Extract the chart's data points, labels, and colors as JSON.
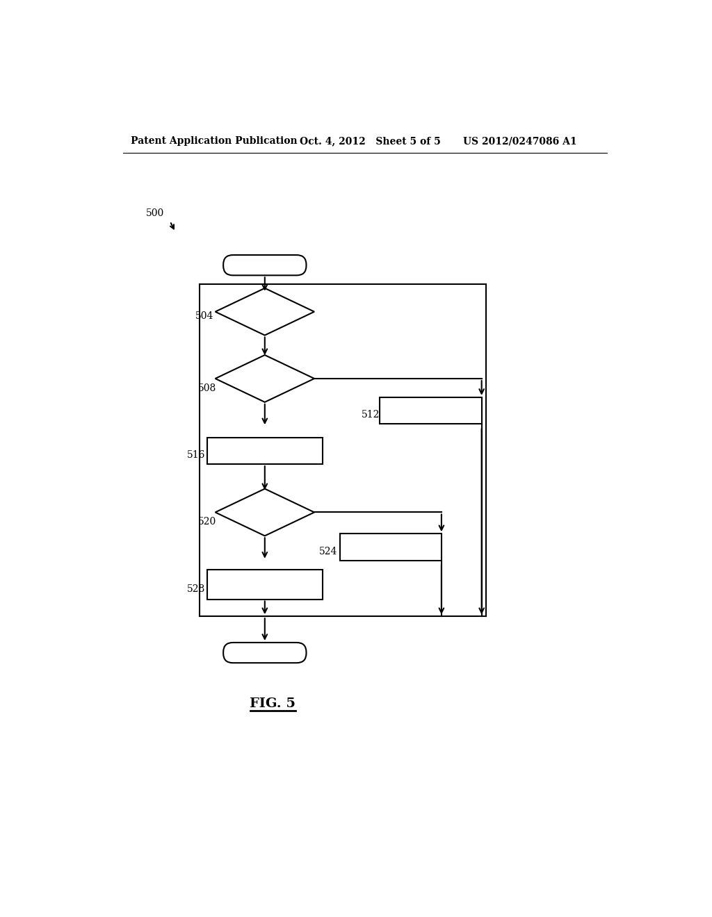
{
  "header_left": "Patent Application Publication",
  "header_center": "Oct. 4, 2012   Sheet 5 of 5",
  "header_right": "US 2012/0247086 A1",
  "fig_label": "FIG. 5",
  "label_500": "500",
  "label_504": "504",
  "label_508": "508",
  "label_512": "512",
  "label_516": "516",
  "label_520": "520",
  "label_524": "524",
  "label_528": "528",
  "bg_color": "#ffffff",
  "line_color": "#000000"
}
